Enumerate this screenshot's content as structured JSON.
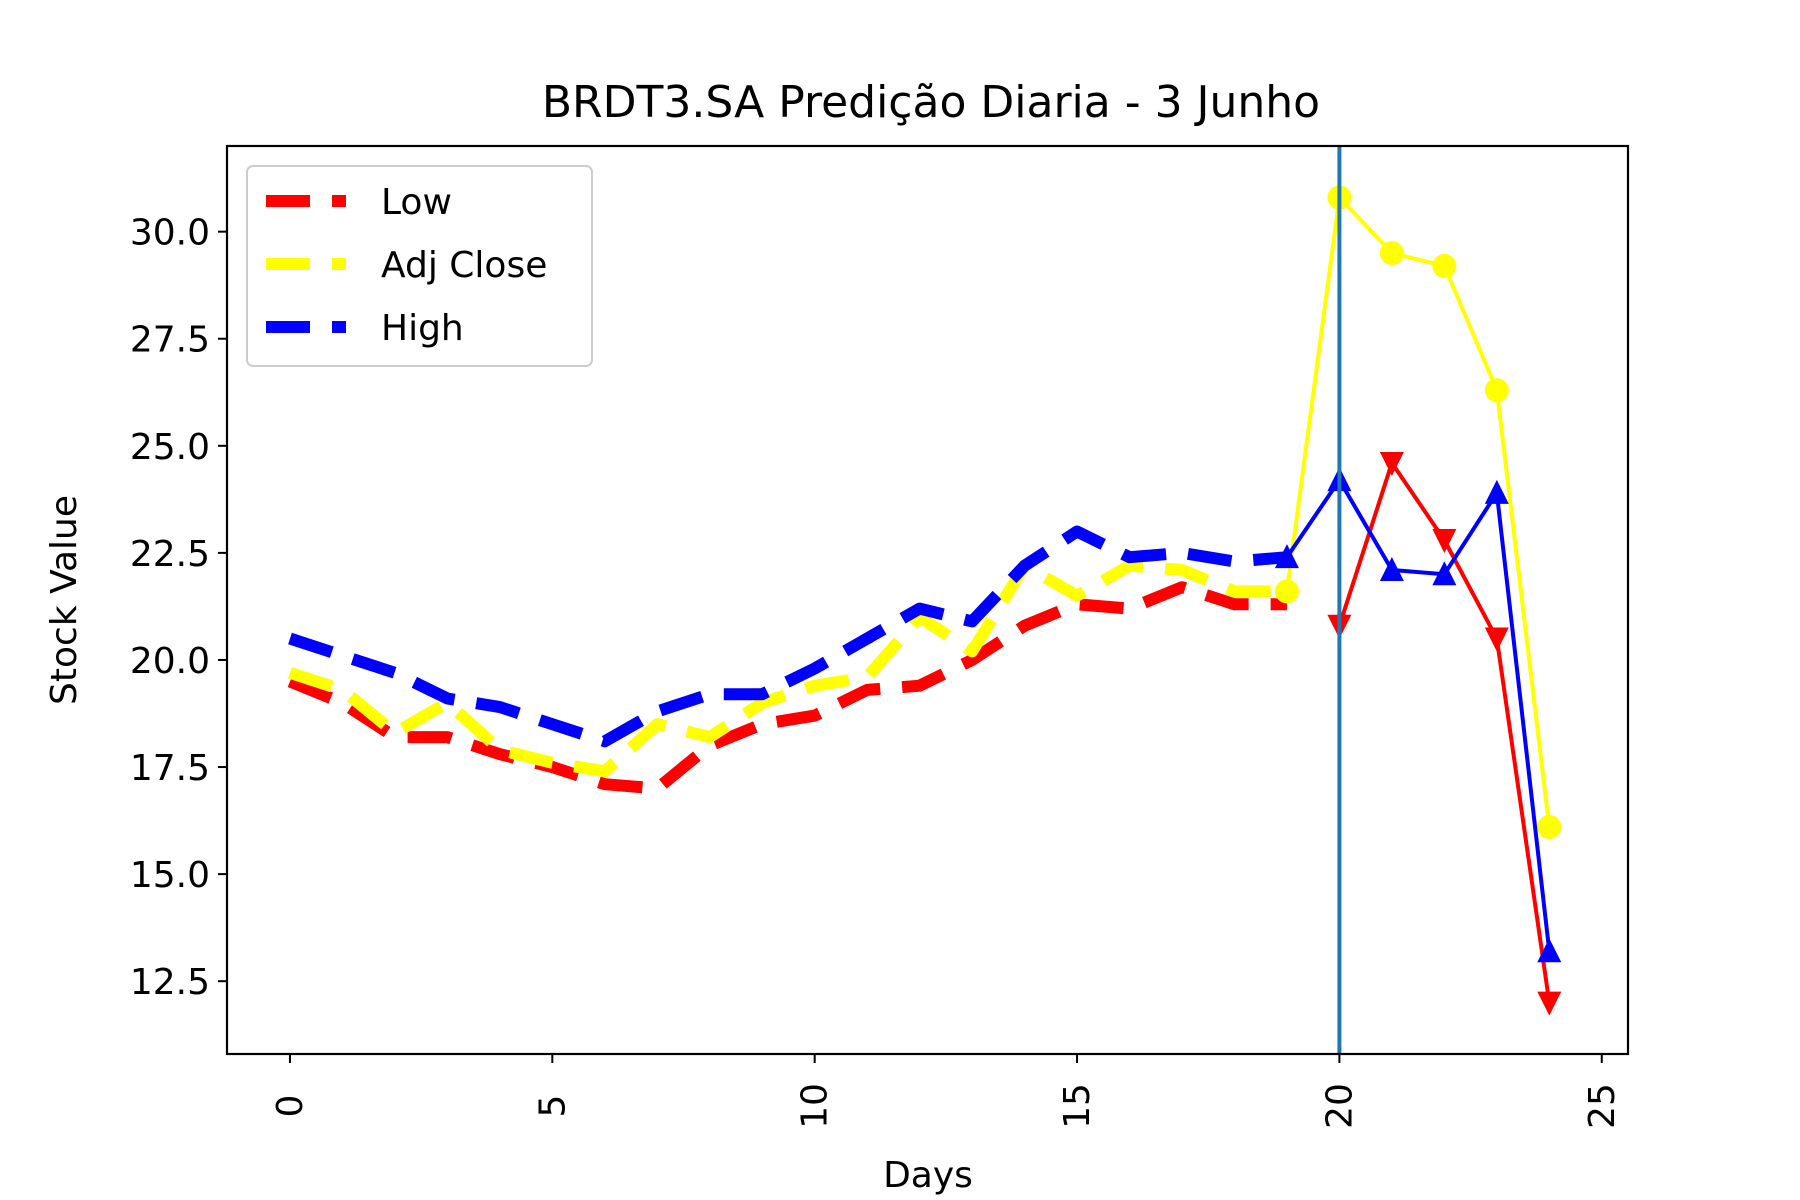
{
  "chart_data": {
    "type": "line",
    "title": "BRDT3.SA Predição Diaria - 3 Junho",
    "xlabel": "Days",
    "ylabel": "Stock Value",
    "xlim": [
      -1.2,
      25.5
    ],
    "ylim": [
      10.8,
      32.0
    ],
    "xticks": [
      0,
      5,
      10,
      15,
      20,
      25
    ],
    "yticks": [
      12.5,
      15.0,
      17.5,
      20.0,
      22.5,
      25.0,
      27.5,
      30.0
    ],
    "ytick_labels": [
      "12.5",
      "15.0",
      "17.5",
      "20.0",
      "22.5",
      "25.0",
      "27.5",
      "30.0"
    ],
    "xtick_labels": [
      "0",
      "5",
      "10",
      "15",
      "20",
      "25"
    ],
    "grid": false,
    "legend_position": "top-left",
    "vline_x": 20,
    "vline_color": "#1f77b4",
    "series": [
      {
        "name": "Low",
        "color": "#ff0000",
        "historical_x": [
          0,
          1,
          2,
          3,
          4,
          5,
          6,
          7,
          8,
          9,
          10,
          11,
          12,
          13,
          14,
          15,
          16,
          17,
          18,
          19
        ],
        "historical_y": [
          19.5,
          19.0,
          18.2,
          18.2,
          17.8,
          17.5,
          17.1,
          17.0,
          18.0,
          18.5,
          18.7,
          19.3,
          19.4,
          20.0,
          20.8,
          21.3,
          21.2,
          21.7,
          21.3,
          21.3
        ],
        "predicted_x": [
          20,
          21,
          22,
          23,
          24
        ],
        "predicted_y": [
          20.8,
          24.6,
          22.8,
          20.5,
          12.0
        ],
        "marker": "triangle-down"
      },
      {
        "name": "Adj Close",
        "color": "#ffff00",
        "historical_x": [
          0,
          1,
          2,
          3,
          4,
          5,
          6,
          7,
          8,
          9,
          10,
          11,
          12,
          13,
          14,
          15,
          16,
          17,
          18,
          19
        ],
        "historical_y": [
          19.7,
          19.3,
          18.3,
          19.0,
          17.9,
          17.6,
          17.4,
          18.5,
          18.2,
          19.0,
          19.4,
          19.6,
          21.0,
          20.2,
          22.2,
          21.5,
          22.2,
          22.1,
          21.6,
          21.6
        ],
        "predicted_x": [
          19,
          20,
          21,
          22,
          23,
          24
        ],
        "predicted_y": [
          21.6,
          30.8,
          29.5,
          29.2,
          26.3,
          16.1
        ],
        "marker": "circle"
      },
      {
        "name": "High",
        "color": "#0000ff",
        "historical_x": [
          0,
          1,
          2,
          3,
          4,
          5,
          6,
          7,
          8,
          9,
          10,
          11,
          12,
          13,
          14,
          15,
          16,
          17,
          18,
          19
        ],
        "historical_y": [
          20.5,
          20.1,
          19.7,
          19.1,
          18.9,
          18.5,
          18.1,
          18.8,
          19.2,
          19.2,
          19.8,
          20.5,
          21.2,
          20.9,
          22.2,
          23.0,
          22.4,
          22.5,
          22.3,
          22.4
        ],
        "predicted_x": [
          19,
          20,
          21,
          22,
          23,
          24
        ],
        "predicted_y": [
          22.4,
          24.2,
          22.1,
          22.0,
          23.9,
          13.2
        ],
        "marker": "triangle-up"
      }
    ]
  }
}
